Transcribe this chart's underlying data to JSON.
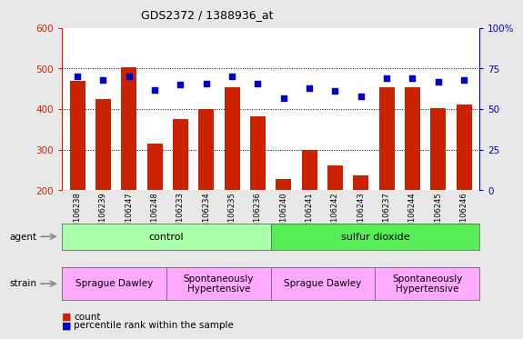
{
  "title": "GDS2372 / 1388936_at",
  "samples": [
    "GSM106238",
    "GSM106239",
    "GSM106247",
    "GSM106248",
    "GSM106233",
    "GSM106234",
    "GSM106235",
    "GSM106236",
    "GSM106240",
    "GSM106241",
    "GSM106242",
    "GSM106243",
    "GSM106237",
    "GSM106244",
    "GSM106245",
    "GSM106246"
  ],
  "counts": [
    470,
    425,
    503,
    315,
    375,
    400,
    455,
    383,
    228,
    300,
    262,
    237,
    455,
    455,
    402,
    412
  ],
  "percentiles": [
    70,
    68,
    70,
    62,
    65,
    66,
    70,
    66,
    57,
    63,
    61,
    58,
    69,
    69,
    67,
    68
  ],
  "bar_color": "#cc2200",
  "dot_color": "#0000cc",
  "ylim_left": [
    200,
    600
  ],
  "ylim_right": [
    0,
    100
  ],
  "yticks_left": [
    200,
    300,
    400,
    500,
    600
  ],
  "yticks_right": [
    0,
    25,
    50,
    75,
    100
  ],
  "yticklabels_right": [
    "0",
    "25",
    "50",
    "75",
    "100%"
  ],
  "agent_groups": [
    {
      "text": "control",
      "start": 0,
      "end": 8,
      "color": "#aaffaa"
    },
    {
      "text": "sulfur dioxide",
      "start": 8,
      "end": 16,
      "color": "#55ee55"
    }
  ],
  "strain_groups": [
    {
      "text": "Sprague Dawley",
      "start": 0,
      "end": 4,
      "color": "#ffaaff"
    },
    {
      "text": "Spontaneously\nHypertensive",
      "start": 4,
      "end": 8,
      "color": "#ffaaff"
    },
    {
      "text": "Sprague Dawley",
      "start": 8,
      "end": 12,
      "color": "#ffaaff"
    },
    {
      "text": "Spontaneously\nHypertensive",
      "start": 12,
      "end": 16,
      "color": "#ffaaff"
    }
  ]
}
